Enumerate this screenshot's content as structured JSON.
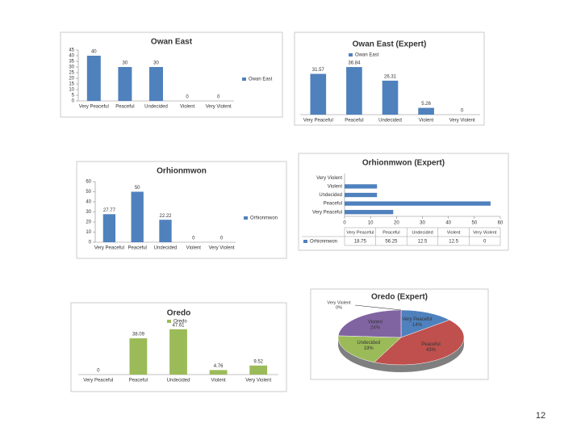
{
  "page_number": "12",
  "chart_data": [
    {
      "type": "bar",
      "title": "Owan East",
      "categories": [
        "Very Peaceful",
        "Peaceful",
        "Undecided",
        "Violent",
        "Very Violent"
      ],
      "series": [
        {
          "name": "Owan East",
          "color": "#4f81bd",
          "values": [
            40,
            30,
            30,
            0,
            0
          ]
        }
      ],
      "ylim": [
        0,
        45
      ],
      "yticks": [
        0,
        5,
        10,
        15,
        20,
        25,
        30,
        35,
        40,
        45
      ],
      "legend": "right"
    },
    {
      "type": "bar",
      "title": "Owan East (Expert)",
      "categories": [
        "Very Peaceful",
        "Peaceful",
        "Undecided",
        "Violent",
        "Very Violent"
      ],
      "series": [
        {
          "name": "Owan East",
          "color": "#4f81bd",
          "values": [
            31.57,
            36.84,
            26.31,
            5.26,
            0
          ]
        }
      ],
      "ylim": [
        0,
        40
      ],
      "legend": "top"
    },
    {
      "type": "bar",
      "title": "Orhionmwon",
      "categories": [
        "Very Peaceful",
        "Peaceful",
        "Undecided",
        "Violent",
        "Very Violent"
      ],
      "series": [
        {
          "name": "Orhionmwon",
          "color": "#4f81bd",
          "values": [
            27.77,
            50,
            22.22,
            0,
            0
          ]
        }
      ],
      "ylim": [
        0,
        60
      ],
      "yticks": [
        0,
        10,
        20,
        30,
        40,
        50,
        60
      ],
      "legend": "right"
    },
    {
      "type": "hbar",
      "title": "Orhionmwon (Expert)",
      "categories": [
        "Very Peaceful",
        "Peaceful",
        "Undecided",
        "Violent",
        "Very Violent"
      ],
      "series": [
        {
          "name": "Orhionmwon",
          "color": "#4f81bd",
          "values": [
            18.75,
            56.25,
            12.5,
            12.5,
            0
          ]
        }
      ],
      "xlim": [
        0,
        60
      ],
      "xticks": [
        0,
        10,
        20,
        30,
        40,
        50,
        60
      ],
      "data_table": true
    },
    {
      "type": "bar",
      "title": "Oredo",
      "categories": [
        "Very Peaceful",
        "Peaceful",
        "Undecided",
        "Violent",
        "Very Violent"
      ],
      "series": [
        {
          "name": "Oredo",
          "color": "#9bbb59",
          "values": [
            0,
            38.09,
            47.61,
            4.76,
            9.52
          ]
        }
      ],
      "ylim": [
        0,
        50
      ],
      "legend": "top"
    },
    {
      "type": "pie",
      "title": "Oredo (Expert)",
      "categories": [
        "Very Peaceful",
        "Peaceful",
        "Undecided",
        "Violent",
        "Very Violent"
      ],
      "values": [
        14,
        43,
        19,
        24,
        0
      ],
      "value_labels": [
        "14%",
        "43%",
        "19%",
        "24%",
        "0%"
      ],
      "colors": [
        "#4f81bd",
        "#c0504d",
        "#9bbb59",
        "#8064a2",
        "#f79646"
      ]
    }
  ]
}
